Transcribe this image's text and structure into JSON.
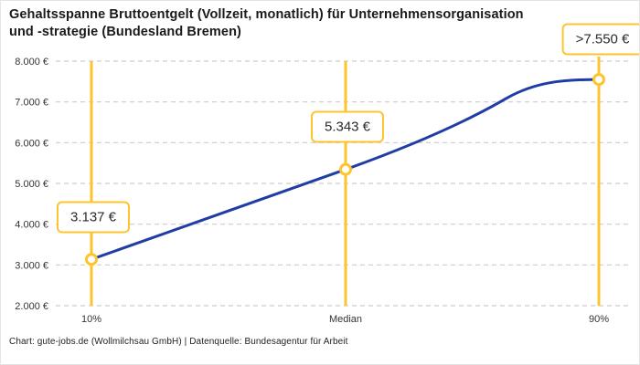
{
  "header": {
    "title_lines": [
      "Gehaltsspanne Bruttoentgelt (Vollzeit, monatlich) für Unternehmensorganisation",
      "und -strategie (Bundesland Bremen)"
    ]
  },
  "footer": {
    "text": "Chart: gute-jobs.de (Wollmilchsau GmbH) | Datenquelle: Bundesagentur für Arbeit"
  },
  "chart_data": {
    "type": "line",
    "title": "Gehaltsspanne Bruttoentgelt (Vollzeit, monatlich) für Unternehmensorganisation und -strategie (Bundesland Bremen)",
    "categories": [
      "10%",
      "Median",
      "90%"
    ],
    "points": [
      {
        "category": "10%",
        "value": 3137,
        "label": "3.137 €"
      },
      {
        "category": "Median",
        "value": 5343,
        "label": "5.343 €"
      },
      {
        "category": "90%",
        "value": 7550,
        "label": ">7.550 €"
      }
    ],
    "ylim": [
      2000,
      8000
    ],
    "y_ticks": [
      {
        "value": 8000,
        "label": "8.000 €"
      },
      {
        "value": 7000,
        "label": "7.000 €"
      },
      {
        "value": 6000,
        "label": "6.000 €"
      },
      {
        "value": 5000,
        "label": "5.000 €"
      },
      {
        "value": 4000,
        "label": "4.000 €"
      },
      {
        "value": 3000,
        "label": "3.000 €"
      },
      {
        "value": 2000,
        "label": "2.000 €"
      }
    ],
    "grid": "horizontal-dashed",
    "legend": "none",
    "colors": {
      "line": "#1f3da4",
      "accent": "#fdc42d",
      "grid": "#cccccc",
      "tick_text": "#333333",
      "title_text": "#1a1a1a"
    }
  }
}
